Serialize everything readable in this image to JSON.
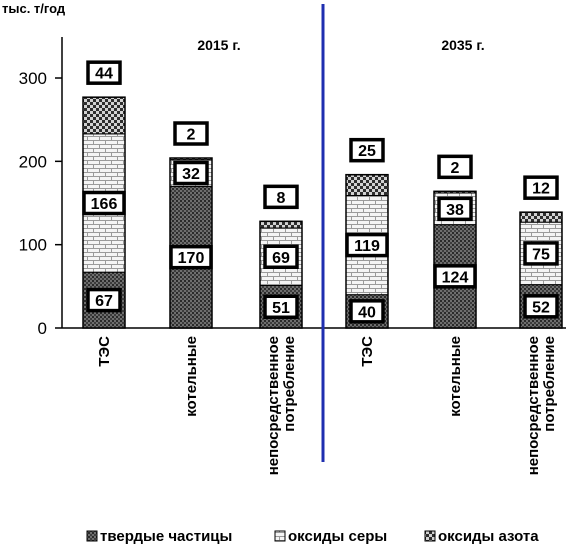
{
  "chart_data": {
    "type": "bar",
    "stacked": true,
    "unit": "тыс. т/год",
    "ylim": [
      0,
      300
    ],
    "yticks": [
      0,
      100,
      200,
      300
    ],
    "grid": false,
    "legend_position": "bottom",
    "groups": [
      {
        "label": "2015 г.",
        "categories": [
          "ТЭС",
          "котельные",
          "непосредственное потребление"
        ],
        "category_lines": [
          [
            "ТЭС"
          ],
          [
            "котельные"
          ],
          [
            "непосредственное",
            "потребление"
          ]
        ]
      },
      {
        "label": "2035 г.",
        "categories": [
          "ТЭС",
          "котельные",
          "непосредственное потребление"
        ],
        "category_lines": [
          [
            "ТЭС"
          ],
          [
            "котельные"
          ],
          [
            "непосредственное",
            "потребление"
          ]
        ]
      }
    ],
    "series": [
      {
        "name": "твердые частицы",
        "pattern": "dense-dots",
        "values": [
          67,
          170,
          51,
          40,
          124,
          52
        ]
      },
      {
        "name": "оксиды серы",
        "pattern": "bricks",
        "values": [
          166,
          32,
          69,
          119,
          38,
          75
        ]
      },
      {
        "name": "оксиды азота",
        "pattern": "checker",
        "values": [
          44,
          2,
          8,
          25,
          2,
          12
        ]
      }
    ],
    "divider_color": "#1f2fb0"
  }
}
